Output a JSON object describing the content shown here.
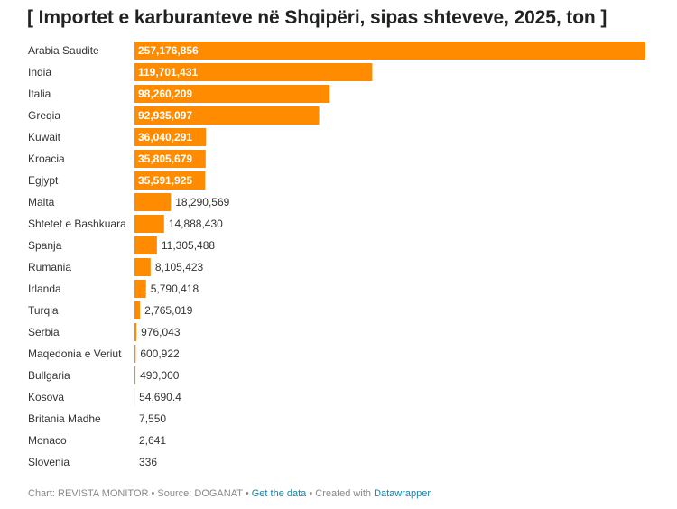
{
  "title": "[ Importet e karburanteve në Shqipëri, sipas shteveve, 2025, ton ]",
  "footer": {
    "prefix": "Chart: REVISTA MONITOR • Source: DOGANAT • ",
    "get_data": "Get the data",
    "middle": " • Created with ",
    "tool": "Datawrapper"
  },
  "colors": {
    "bar": "#ff8c00",
    "label_inside": "#ffffff",
    "label_outside": "#333333"
  },
  "chart_data": {
    "type": "bar",
    "orientation": "horizontal",
    "title": "[ Importet e karburanteve në Shqipëri, sipas shteveve, 2025, ton ]",
    "categories": [
      "Arabia Saudite",
      "India",
      "Italia",
      "Greqia",
      "Kuwait",
      "Kroacia",
      "Egjypt",
      "Malta",
      "Shtetet e Bashkuara",
      "Spanja",
      "Rumania",
      "Irlanda",
      "Turqia",
      "Serbia",
      "Maqedonia e Veriut",
      "Bullgaria",
      "Kosova",
      "Britania Madhe",
      "Monaco",
      "Slovenia"
    ],
    "values": [
      257176856,
      119701431,
      98260209,
      92935097,
      36040291,
      35805679,
      35591925,
      18290569,
      14888430,
      11305488,
      8105423,
      5790418,
      2765019,
      976043,
      600922,
      490000,
      54690.4,
      7550,
      2641,
      336
    ],
    "value_labels": [
      "257,176,856",
      "119,701,431",
      "98,260,209",
      "92,935,097",
      "36,040,291",
      "35,805,679",
      "35,591,925",
      "18,290,569",
      "14,888,430",
      "11,305,488",
      "8,105,423",
      "5,790,418",
      "2,765,019",
      "976,043",
      "600,922",
      "490,000",
      "54,690.4",
      "7,550",
      "2,641",
      "336"
    ],
    "xlim": [
      0,
      257176856
    ],
    "grid": false,
    "legend": "none"
  }
}
